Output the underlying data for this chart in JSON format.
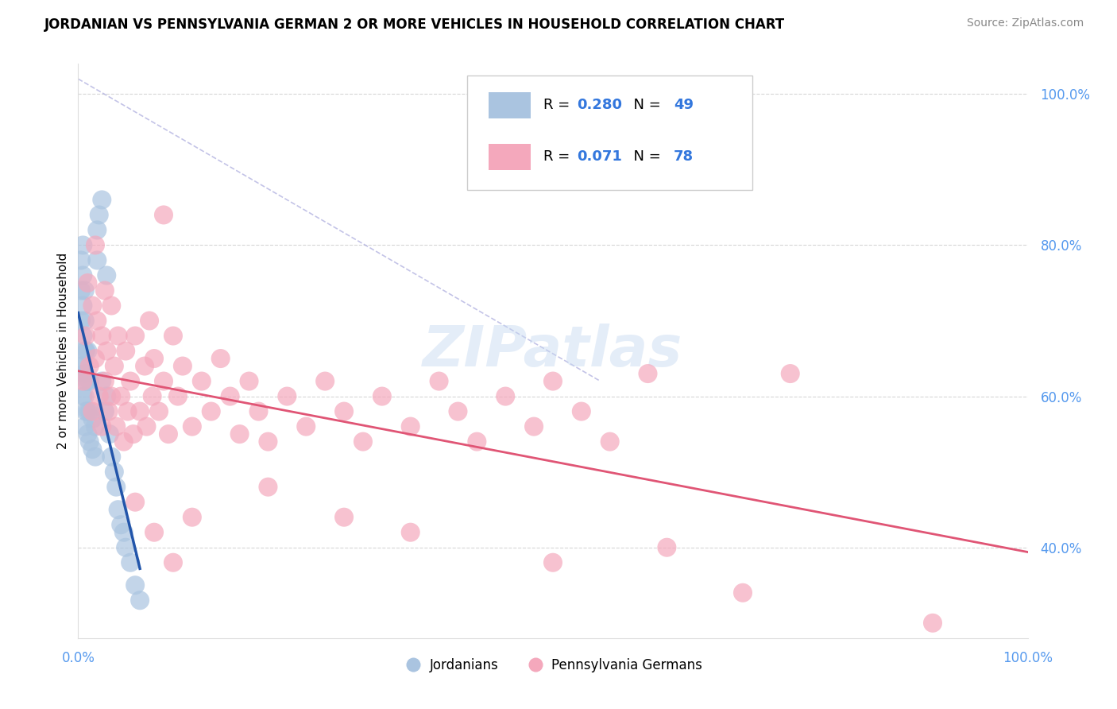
{
  "title": "JORDANIAN VS PENNSYLVANIA GERMAN 2 OR MORE VEHICLES IN HOUSEHOLD CORRELATION CHART",
  "source": "Source: ZipAtlas.com",
  "ylabel": "2 or more Vehicles in Household",
  "watermark": "ZIPatlas",
  "legend_r_jordanian": "0.280",
  "legend_n_jordanian": "49",
  "legend_r_penn": "0.071",
  "legend_n_penn": "78",
  "jordanian_color": "#aac4e0",
  "penn_color": "#f4a8bc",
  "trend_jordanian_color": "#2255aa",
  "trend_penn_color": "#e05575",
  "diagonal_color": "#aaaadd",
  "ytick_positions": [
    0.4,
    0.6,
    0.8,
    1.0
  ],
  "ytick_labels": [
    "40.0%",
    "60.0%",
    "80.0%",
    "100.0%"
  ],
  "xlim": [
    0.0,
    1.0
  ],
  "ylim": [
    0.28,
    1.04
  ],
  "jordanian_points": [
    [
      0.003,
      0.64
    ],
    [
      0.003,
      0.7
    ],
    [
      0.003,
      0.74
    ],
    [
      0.003,
      0.78
    ],
    [
      0.005,
      0.6
    ],
    [
      0.005,
      0.64
    ],
    [
      0.005,
      0.68
    ],
    [
      0.005,
      0.72
    ],
    [
      0.005,
      0.76
    ],
    [
      0.005,
      0.8
    ],
    [
      0.007,
      0.56
    ],
    [
      0.007,
      0.6
    ],
    [
      0.007,
      0.63
    ],
    [
      0.007,
      0.66
    ],
    [
      0.007,
      0.7
    ],
    [
      0.007,
      0.74
    ],
    [
      0.008,
      0.58
    ],
    [
      0.008,
      0.62
    ],
    [
      0.008,
      0.66
    ],
    [
      0.01,
      0.55
    ],
    [
      0.01,
      0.58
    ],
    [
      0.01,
      0.62
    ],
    [
      0.01,
      0.66
    ],
    [
      0.012,
      0.54
    ],
    [
      0.012,
      0.58
    ],
    [
      0.012,
      0.62
    ],
    [
      0.015,
      0.53
    ],
    [
      0.015,
      0.57
    ],
    [
      0.018,
      0.52
    ],
    [
      0.018,
      0.56
    ],
    [
      0.02,
      0.78
    ],
    [
      0.02,
      0.82
    ],
    [
      0.022,
      0.84
    ],
    [
      0.025,
      0.86
    ],
    [
      0.025,
      0.62
    ],
    [
      0.028,
      0.58
    ],
    [
      0.03,
      0.76
    ],
    [
      0.03,
      0.6
    ],
    [
      0.033,
      0.55
    ],
    [
      0.035,
      0.52
    ],
    [
      0.038,
      0.5
    ],
    [
      0.04,
      0.48
    ],
    [
      0.042,
      0.45
    ],
    [
      0.045,
      0.43
    ],
    [
      0.048,
      0.42
    ],
    [
      0.05,
      0.4
    ],
    [
      0.055,
      0.38
    ],
    [
      0.06,
      0.35
    ],
    [
      0.065,
      0.33
    ]
  ],
  "penn_points": [
    [
      0.005,
      0.62
    ],
    [
      0.008,
      0.68
    ],
    [
      0.01,
      0.75
    ],
    [
      0.012,
      0.64
    ],
    [
      0.015,
      0.72
    ],
    [
      0.015,
      0.58
    ],
    [
      0.018,
      0.8
    ],
    [
      0.018,
      0.65
    ],
    [
      0.02,
      0.7
    ],
    [
      0.022,
      0.6
    ],
    [
      0.025,
      0.68
    ],
    [
      0.025,
      0.56
    ],
    [
      0.028,
      0.74
    ],
    [
      0.028,
      0.62
    ],
    [
      0.03,
      0.66
    ],
    [
      0.032,
      0.58
    ],
    [
      0.035,
      0.72
    ],
    [
      0.035,
      0.6
    ],
    [
      0.038,
      0.64
    ],
    [
      0.04,
      0.56
    ],
    [
      0.042,
      0.68
    ],
    [
      0.045,
      0.6
    ],
    [
      0.048,
      0.54
    ],
    [
      0.05,
      0.66
    ],
    [
      0.052,
      0.58
    ],
    [
      0.055,
      0.62
    ],
    [
      0.058,
      0.55
    ],
    [
      0.06,
      0.68
    ],
    [
      0.065,
      0.58
    ],
    [
      0.07,
      0.64
    ],
    [
      0.072,
      0.56
    ],
    [
      0.075,
      0.7
    ],
    [
      0.078,
      0.6
    ],
    [
      0.08,
      0.65
    ],
    [
      0.085,
      0.58
    ],
    [
      0.09,
      0.62
    ],
    [
      0.095,
      0.55
    ],
    [
      0.1,
      0.68
    ],
    [
      0.105,
      0.6
    ],
    [
      0.11,
      0.64
    ],
    [
      0.12,
      0.56
    ],
    [
      0.13,
      0.62
    ],
    [
      0.14,
      0.58
    ],
    [
      0.15,
      0.65
    ],
    [
      0.16,
      0.6
    ],
    [
      0.17,
      0.55
    ],
    [
      0.18,
      0.62
    ],
    [
      0.19,
      0.58
    ],
    [
      0.2,
      0.54
    ],
    [
      0.22,
      0.6
    ],
    [
      0.24,
      0.56
    ],
    [
      0.26,
      0.62
    ],
    [
      0.28,
      0.58
    ],
    [
      0.3,
      0.54
    ],
    [
      0.32,
      0.6
    ],
    [
      0.35,
      0.56
    ],
    [
      0.38,
      0.62
    ],
    [
      0.4,
      0.58
    ],
    [
      0.42,
      0.54
    ],
    [
      0.45,
      0.6
    ],
    [
      0.48,
      0.56
    ],
    [
      0.5,
      0.62
    ],
    [
      0.53,
      0.58
    ],
    [
      0.56,
      0.54
    ],
    [
      0.06,
      0.46
    ],
    [
      0.08,
      0.42
    ],
    [
      0.1,
      0.38
    ],
    [
      0.12,
      0.44
    ],
    [
      0.09,
      0.84
    ],
    [
      0.2,
      0.48
    ],
    [
      0.28,
      0.44
    ],
    [
      0.35,
      0.42
    ],
    [
      0.5,
      0.38
    ],
    [
      0.6,
      0.63
    ],
    [
      0.62,
      0.4
    ],
    [
      0.7,
      0.34
    ],
    [
      0.75,
      0.63
    ],
    [
      0.9,
      0.3
    ]
  ]
}
